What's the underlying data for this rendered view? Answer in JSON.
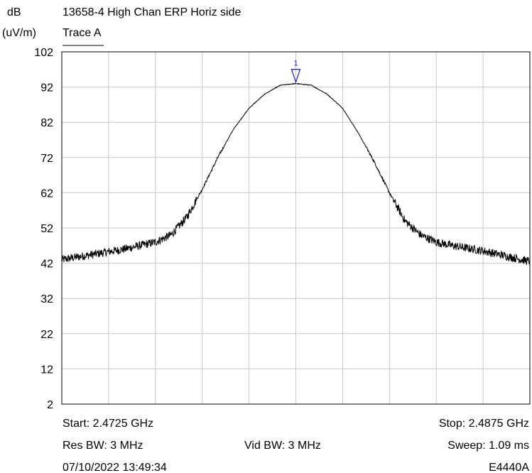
{
  "chart_data": {
    "type": "line",
    "title": "13658-4 High Chan ERP Horiz side",
    "ylabel_line1": "dB",
    "ylabel_line2": "(uV/m)",
    "legend": "Trace A",
    "ylim": [
      2,
      102
    ],
    "yticks": [
      102,
      92,
      82,
      72,
      62,
      52,
      42,
      32,
      22,
      12,
      2
    ],
    "xlim": [
      2.4725,
      2.4875
    ],
    "x_unit": "GHz",
    "grid": true,
    "series": [
      {
        "name": "Trace A",
        "x": [
          2.4725,
          2.4745,
          2.4755,
          2.476,
          2.4765,
          2.477,
          2.4775,
          2.478,
          2.4785,
          2.479,
          2.4795,
          2.48,
          2.4805,
          2.481,
          2.4815,
          2.482,
          2.4825,
          2.483,
          2.4835,
          2.484,
          2.4845,
          2.485,
          2.486,
          2.4875
        ],
        "y": [
          43,
          46,
          48,
          50,
          55,
          63,
          72,
          80,
          86,
          90,
          92.5,
          93,
          92.5,
          90,
          86,
          79,
          71,
          62,
          54,
          50,
          48,
          47,
          45.5,
          42.5
        ]
      }
    ],
    "marker": {
      "label": "1",
      "x": 2.48,
      "y": 93
    },
    "footer": {
      "start": "Start: 2.4725 GHz",
      "stop": "Stop: 2.4875 GHz",
      "res_bw": "Res BW: 3 MHz",
      "vid_bw": "Vid BW: 3 MHz",
      "sweep": "Sweep: 1.09 ms",
      "date": "07/10/2022 13:49:34",
      "model": "E4440A"
    },
    "colors": {
      "trace": "#000000",
      "grid": "#c8c8c8",
      "marker": "#1c1cb4"
    }
  }
}
